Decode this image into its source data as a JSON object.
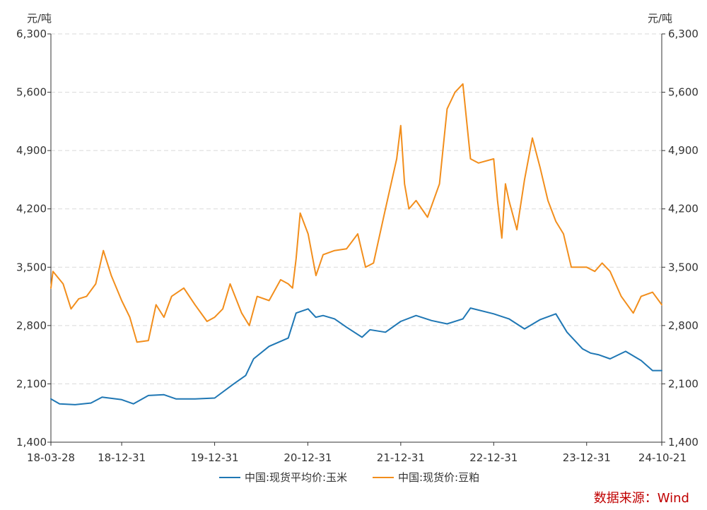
{
  "chart_data": {
    "type": "line",
    "y_unit_left": "元/吨",
    "y_unit_right": "元/吨",
    "ylim": [
      1400,
      6300
    ],
    "y_ticks": [
      1400,
      2100,
      2800,
      3500,
      4200,
      4900,
      5600,
      6300
    ],
    "y_tick_labels": [
      "1,400",
      "2,100",
      "2,800",
      "3,500",
      "4,200",
      "4,900",
      "5,600",
      "6,300"
    ],
    "x_range": [
      "2018-03-28",
      "2024-10-21"
    ],
    "x_ticks": [
      "2018-03-28",
      "2018-12-31",
      "2019-12-31",
      "2020-12-31",
      "2021-12-31",
      "2022-12-31",
      "2023-12-31",
      "2024-10-21"
    ],
    "x_tick_labels": [
      "18-03-28",
      "18-12-31",
      "19-12-31",
      "20-12-31",
      "21-12-31",
      "22-12-31",
      "23-12-31",
      "24-10-21"
    ],
    "grid": true,
    "legend_position": "bottom",
    "source": "数据来源：Wind",
    "source_color": "#c00000",
    "series": [
      {
        "name": "中国:现货平均价:玉米",
        "color": "#1f77b4",
        "points": [
          [
            "2018-03-28",
            1920
          ],
          [
            "2018-05-01",
            1860
          ],
          [
            "2018-07-01",
            1850
          ],
          [
            "2018-09-01",
            1870
          ],
          [
            "2018-10-15",
            1940
          ],
          [
            "2018-12-31",
            1910
          ],
          [
            "2019-02-15",
            1860
          ],
          [
            "2019-04-15",
            1960
          ],
          [
            "2019-06-15",
            1970
          ],
          [
            "2019-08-01",
            1920
          ],
          [
            "2019-10-15",
            1920
          ],
          [
            "2019-12-31",
            1930
          ],
          [
            "2020-03-15",
            2100
          ],
          [
            "2020-05-01",
            2200
          ],
          [
            "2020-06-01",
            2400
          ],
          [
            "2020-08-01",
            2550
          ],
          [
            "2020-10-15",
            2650
          ],
          [
            "2020-11-15",
            2950
          ],
          [
            "2021-01-01",
            3000
          ],
          [
            "2021-01-31",
            2900
          ],
          [
            "2021-03-01",
            2920
          ],
          [
            "2021-04-15",
            2880
          ],
          [
            "2021-06-01",
            2780
          ],
          [
            "2021-08-01",
            2660
          ],
          [
            "2021-09-01",
            2750
          ],
          [
            "2021-11-01",
            2720
          ],
          [
            "2021-12-31",
            2850
          ],
          [
            "2022-03-01",
            2920
          ],
          [
            "2022-05-01",
            2860
          ],
          [
            "2022-07-01",
            2820
          ],
          [
            "2022-09-01",
            2880
          ],
          [
            "2022-10-01",
            3010
          ],
          [
            "2022-12-31",
            2940
          ],
          [
            "2023-03-01",
            2880
          ],
          [
            "2023-05-01",
            2760
          ],
          [
            "2023-07-01",
            2870
          ],
          [
            "2023-09-01",
            2940
          ],
          [
            "2023-10-15",
            2720
          ],
          [
            "2023-12-15",
            2520
          ],
          [
            "2024-01-15",
            2470
          ],
          [
            "2024-02-15",
            2450
          ],
          [
            "2024-04-01",
            2400
          ],
          [
            "2024-06-01",
            2490
          ],
          [
            "2024-08-01",
            2380
          ],
          [
            "2024-09-15",
            2260
          ],
          [
            "2024-10-21",
            2260
          ]
        ]
      },
      {
        "name": "中国:现货价:豆粕",
        "color": "#f28e1c",
        "points": [
          [
            "2018-03-28",
            3250
          ],
          [
            "2018-04-05",
            3450
          ],
          [
            "2018-05-15",
            3300
          ],
          [
            "2018-06-15",
            3000
          ],
          [
            "2018-07-15",
            3120
          ],
          [
            "2018-08-15",
            3150
          ],
          [
            "2018-09-20",
            3300
          ],
          [
            "2018-10-20",
            3700
          ],
          [
            "2018-11-20",
            3400
          ],
          [
            "2018-12-31",
            3100
          ],
          [
            "2019-02-01",
            2900
          ],
          [
            "2019-03-01",
            2600
          ],
          [
            "2019-04-15",
            2620
          ],
          [
            "2019-05-15",
            3050
          ],
          [
            "2019-06-15",
            2900
          ],
          [
            "2019-07-15",
            3150
          ],
          [
            "2019-09-01",
            3250
          ],
          [
            "2019-10-15",
            3050
          ],
          [
            "2019-12-01",
            2850
          ],
          [
            "2019-12-31",
            2900
          ],
          [
            "2020-02-01",
            3000
          ],
          [
            "2020-03-01",
            3300
          ],
          [
            "2020-04-15",
            2950
          ],
          [
            "2020-05-15",
            2800
          ],
          [
            "2020-06-15",
            3150
          ],
          [
            "2020-08-01",
            3100
          ],
          [
            "2020-09-15",
            3350
          ],
          [
            "2020-10-15",
            3300
          ],
          [
            "2020-11-01",
            3250
          ],
          [
            "2020-11-15",
            3600
          ],
          [
            "2020-12-01",
            4150
          ],
          [
            "2021-01-01",
            3900
          ],
          [
            "2021-02-01",
            3400
          ],
          [
            "2021-03-01",
            3650
          ],
          [
            "2021-04-15",
            3700
          ],
          [
            "2021-06-01",
            3720
          ],
          [
            "2021-07-15",
            3900
          ],
          [
            "2021-08-15",
            3500
          ],
          [
            "2021-09-15",
            3550
          ],
          [
            "2021-11-01",
            4200
          ],
          [
            "2021-12-15",
            4800
          ],
          [
            "2021-12-31",
            5200
          ],
          [
            "2022-01-15",
            4500
          ],
          [
            "2022-02-01",
            4200
          ],
          [
            "2022-03-01",
            4300
          ],
          [
            "2022-04-15",
            4100
          ],
          [
            "2022-06-01",
            4500
          ],
          [
            "2022-07-01",
            5400
          ],
          [
            "2022-08-01",
            5600
          ],
          [
            "2022-09-01",
            5700
          ],
          [
            "2022-10-01",
            4800
          ],
          [
            "2022-11-01",
            4750
          ],
          [
            "2022-12-31",
            4800
          ],
          [
            "2023-01-15",
            4300
          ],
          [
            "2023-02-01",
            3850
          ],
          [
            "2023-02-15",
            4500
          ],
          [
            "2023-03-01",
            4300
          ],
          [
            "2023-04-01",
            3950
          ],
          [
            "2023-05-01",
            4550
          ],
          [
            "2023-06-01",
            5050
          ],
          [
            "2023-07-01",
            4700
          ],
          [
            "2023-08-01",
            4300
          ],
          [
            "2023-09-01",
            4050
          ],
          [
            "2023-10-01",
            3900
          ],
          [
            "2023-11-01",
            3500
          ],
          [
            "2023-12-31",
            3500
          ],
          [
            "2024-02-01",
            3450
          ],
          [
            "2024-03-01",
            3550
          ],
          [
            "2024-04-01",
            3450
          ],
          [
            "2024-05-15",
            3150
          ],
          [
            "2024-07-01",
            2950
          ],
          [
            "2024-08-01",
            3150
          ],
          [
            "2024-09-15",
            3200
          ],
          [
            "2024-10-21",
            3050
          ]
        ]
      }
    ]
  }
}
